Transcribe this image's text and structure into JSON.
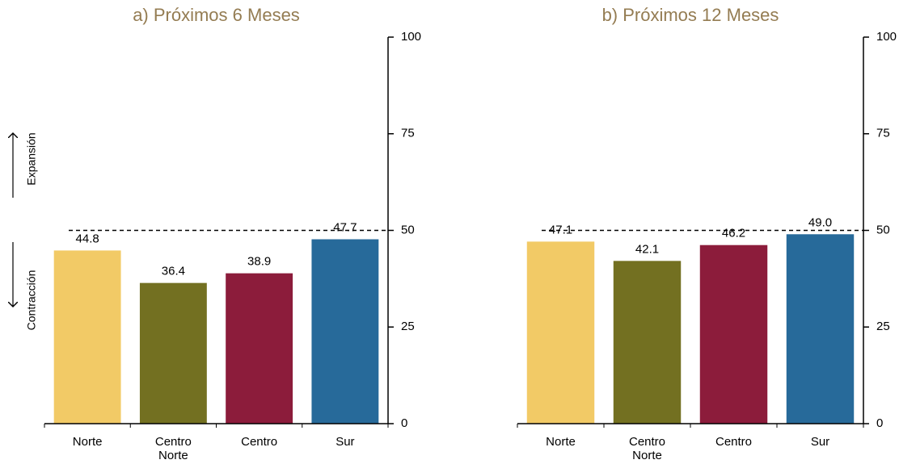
{
  "chart_data": [
    {
      "type": "bar",
      "title": "a) Próximos 6 Meses",
      "categories": [
        "Norte",
        "Centro Norte",
        "Centro",
        "Sur"
      ],
      "values": [
        44.8,
        36.4,
        38.9,
        47.7
      ],
      "value_labels": [
        "44.8",
        "36.4",
        "38.9",
        "47.7"
      ],
      "colors": [
        "#f2ca66",
        "#737021",
        "#8c1c3b",
        "#276a9a"
      ],
      "ylim": [
        0,
        100
      ],
      "yticks": [
        0,
        25,
        50,
        75,
        100
      ],
      "reference_line": 50,
      "annotations": [
        "Expansión",
        "Contracción"
      ]
    },
    {
      "type": "bar",
      "title": "b) Próximos 12 Meses",
      "categories": [
        "Norte",
        "Centro Norte",
        "Centro",
        "Sur"
      ],
      "values": [
        47.1,
        42.1,
        46.2,
        49.0
      ],
      "value_labels": [
        "47.1",
        "42.1",
        "46.2",
        "49.0"
      ],
      "colors": [
        "#f2ca66",
        "#737021",
        "#8c1c3b",
        "#276a9a"
      ],
      "ylim": [
        0,
        100
      ],
      "yticks": [
        0,
        25,
        50,
        75,
        100
      ],
      "reference_line": 50
    }
  ]
}
